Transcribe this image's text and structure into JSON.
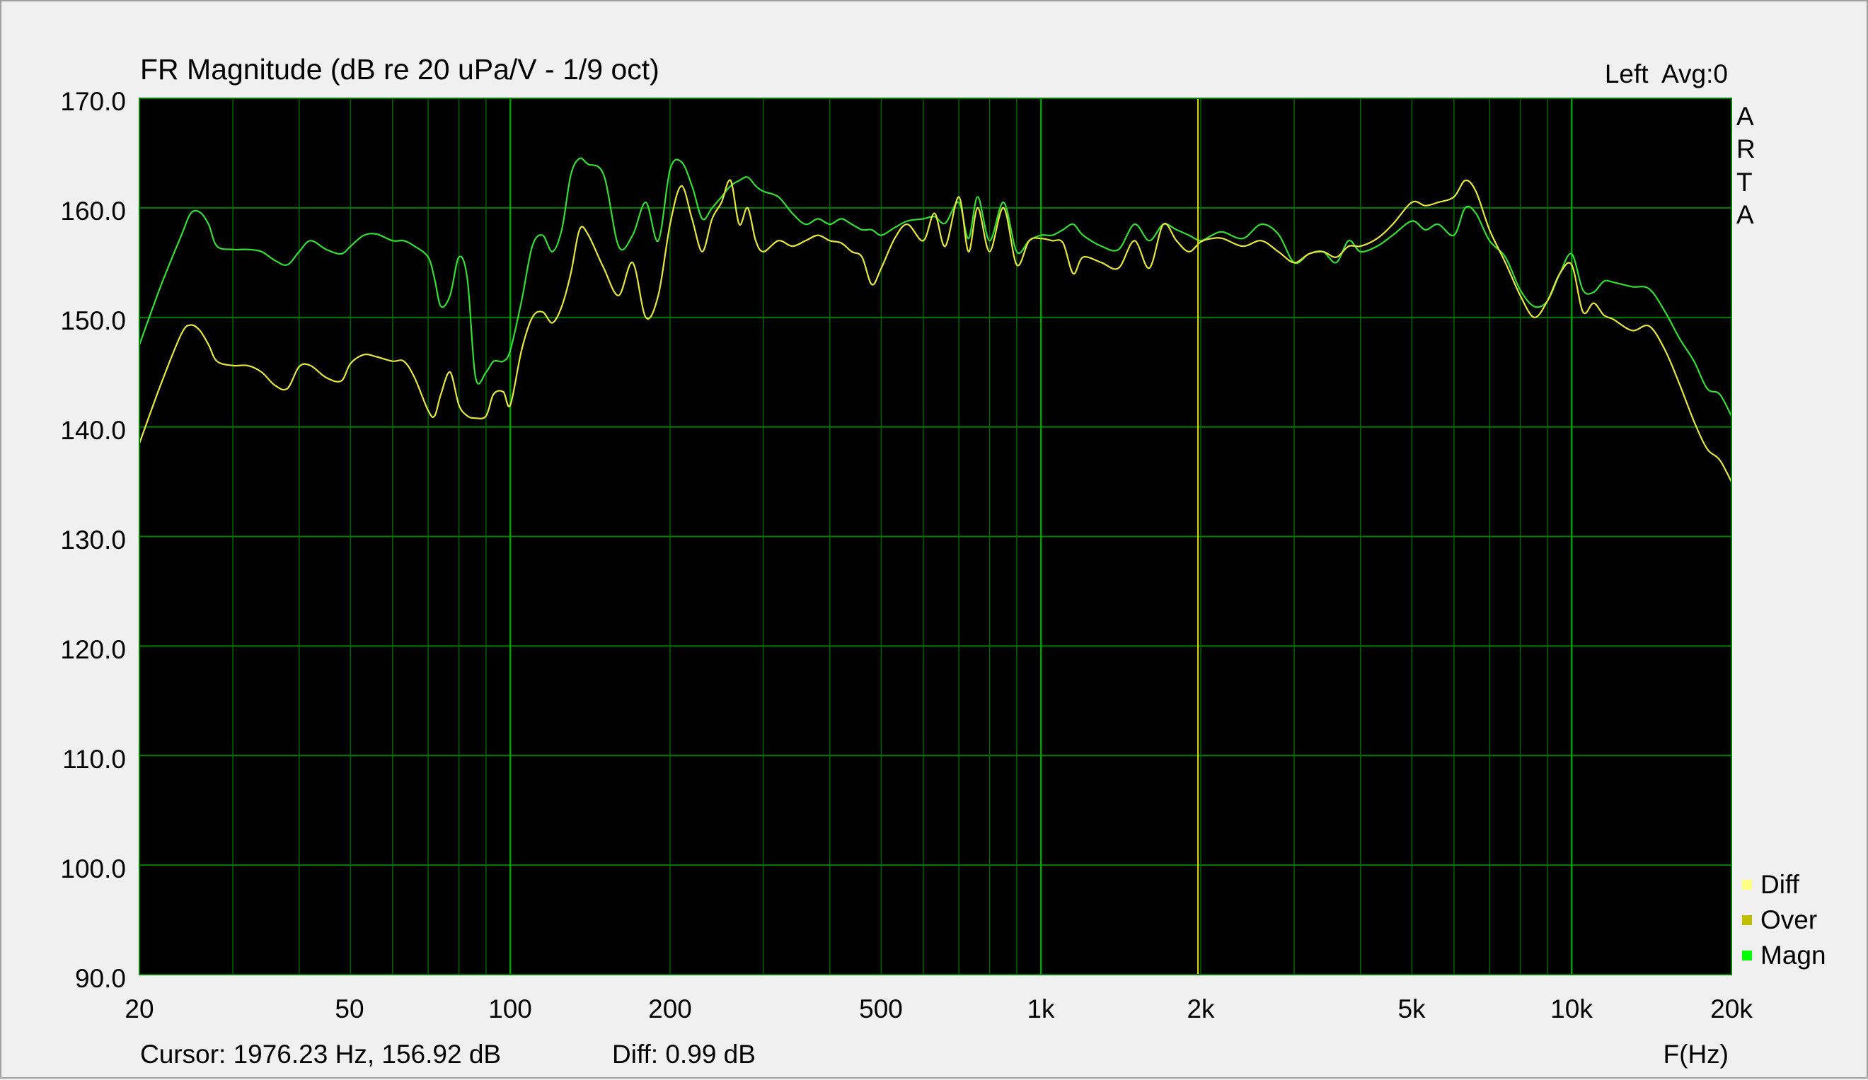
{
  "chart_data": {
    "type": "line",
    "title": "FR Magnitude (dB re 20 uPa/V - 1/9 oct)",
    "channel": "Left  Avg:0",
    "brand_letters": [
      "A",
      "R",
      "T",
      "A"
    ],
    "xlabel": "F(Hz)",
    "ylabel": "",
    "x_scale": "log",
    "xlim": [
      20,
      20000
    ],
    "ylim": [
      90,
      170
    ],
    "x_ticks": [
      {
        "value": 20,
        "label": "20"
      },
      {
        "value": 50,
        "label": "50"
      },
      {
        "value": 100,
        "label": "100"
      },
      {
        "value": 200,
        "label": "200"
      },
      {
        "value": 500,
        "label": "500"
      },
      {
        "value": 1000,
        "label": "1k"
      },
      {
        "value": 2000,
        "label": "2k"
      },
      {
        "value": 5000,
        "label": "5k"
      },
      {
        "value": 10000,
        "label": "10k"
      },
      {
        "value": 20000,
        "label": "20k"
      }
    ],
    "y_ticks": [
      "170.0",
      "160.0",
      "150.0",
      "140.0",
      "130.0",
      "120.0",
      "110.0",
      "100.0",
      "90.0"
    ],
    "grid": true,
    "background": "#000000",
    "grid_color": "#008000",
    "legend_position": "bottom-right",
    "legend": [
      {
        "name": "Diff",
        "color": "#ffff80"
      },
      {
        "name": "Over",
        "color": "#c0c000"
      },
      {
        "name": "Magn",
        "color": "#00ff00"
      }
    ],
    "cursor": {
      "frequency_hz": 1976.23,
      "level_db": 156.92,
      "color": "#e0e000"
    },
    "cursor_text": "Cursor: 1976.23 Hz, 156.92 dB",
    "diff_text": "Diff: 0.99 dB",
    "series": [
      {
        "name": "Magn",
        "color": "#33dd33",
        "x": [
          20,
          22,
          24,
          25,
          26,
          27,
          28,
          30,
          32,
          34,
          36,
          38,
          40,
          42,
          45,
          48,
          50,
          53,
          56,
          60,
          63,
          66,
          70,
          72,
          74,
          77,
          80,
          83,
          86,
          90,
          93,
          97,
          100,
          105,
          110,
          115,
          120,
          125,
          130,
          135,
          140,
          150,
          160,
          170,
          180,
          190,
          200,
          210,
          220,
          230,
          240,
          250,
          260,
          270,
          280,
          290,
          300,
          320,
          340,
          360,
          380,
          400,
          420,
          440,
          460,
          480,
          500,
          530,
          560,
          600,
          630,
          660,
          700,
          730,
          760,
          800,
          850,
          900,
          950,
          1000,
          1050,
          1100,
          1150,
          1200,
          1300,
          1400,
          1500,
          1600,
          1700,
          1800,
          1900,
          2000,
          2100,
          2200,
          2400,
          2600,
          2800,
          3000,
          3200,
          3400,
          3600,
          3800,
          4000,
          4300,
          4600,
          5000,
          5300,
          5600,
          6000,
          6300,
          6600,
          7000,
          7500,
          8000,
          8500,
          9000,
          9500,
          10000,
          10500,
          11000,
          11500,
          12000,
          13000,
          14000,
          15000,
          16000,
          17000,
          18000,
          19000,
          20000
        ],
        "values": [
          147.5,
          153.0,
          157.5,
          159.5,
          159.6,
          158.5,
          156.5,
          156.2,
          156.2,
          156.0,
          155.2,
          154.8,
          156.0,
          157.0,
          156.2,
          155.8,
          156.5,
          157.5,
          157.6,
          157.0,
          157.0,
          156.5,
          155.5,
          153.5,
          151.0,
          152.0,
          155.5,
          153.5,
          144.5,
          145.0,
          146.0,
          146.0,
          147.0,
          151.5,
          156.5,
          157.5,
          156.0,
          158.0,
          163.0,
          164.5,
          164.0,
          163.0,
          156.5,
          157.5,
          160.5,
          157.0,
          163.5,
          164.2,
          162.0,
          159.0,
          160.0,
          161.0,
          162.0,
          162.5,
          162.8,
          162.0,
          161.5,
          161.0,
          159.5,
          158.5,
          159.0,
          158.5,
          159.0,
          158.5,
          158.0,
          158.0,
          157.5,
          158.2,
          158.8,
          159.0,
          159.2,
          158.6,
          160.5,
          157.2,
          161.0,
          157.0,
          160.5,
          156.0,
          157.0,
          157.5,
          157.5,
          158.0,
          158.5,
          157.5,
          156.5,
          156.2,
          158.5,
          157.0,
          158.5,
          158.0,
          157.5,
          157.0,
          157.5,
          157.8,
          157.2,
          158.5,
          157.6,
          155.0,
          155.8,
          156.0,
          155.0,
          157.0,
          156.0,
          156.5,
          157.5,
          158.8,
          158.0,
          158.5,
          157.5,
          160.0,
          159.5,
          157.0,
          155.5,
          152.5,
          151.0,
          151.5,
          154.0,
          155.8,
          152.5,
          152.3,
          153.3,
          153.2,
          152.8,
          152.6,
          150.5,
          148.0,
          146.0,
          143.5,
          143.0,
          141.0
        ]
      },
      {
        "name": "Over",
        "color": "#e6e63c",
        "x": [
          20,
          22,
          24,
          25,
          26,
          27,
          28,
          30,
          32,
          34,
          36,
          38,
          40,
          42,
          45,
          48,
          50,
          53,
          56,
          60,
          63,
          66,
          70,
          72,
          74,
          77,
          80,
          83,
          86,
          90,
          93,
          97,
          100,
          105,
          110,
          115,
          120,
          125,
          130,
          135,
          140,
          150,
          160,
          170,
          180,
          190,
          200,
          210,
          220,
          230,
          240,
          250,
          260,
          270,
          280,
          290,
          300,
          320,
          340,
          360,
          380,
          400,
          420,
          440,
          460,
          480,
          500,
          530,
          560,
          600,
          630,
          660,
          700,
          730,
          760,
          800,
          850,
          900,
          950,
          1000,
          1050,
          1100,
          1150,
          1200,
          1300,
          1400,
          1500,
          1600,
          1700,
          1800,
          1900,
          2000,
          2100,
          2200,
          2400,
          2600,
          2800,
          3000,
          3200,
          3400,
          3600,
          3800,
          4000,
          4300,
          4600,
          5000,
          5300,
          5600,
          6000,
          6300,
          6600,
          7000,
          7500,
          8000,
          8500,
          9000,
          9500,
          10000,
          10500,
          11000,
          11500,
          12000,
          13000,
          14000,
          15000,
          16000,
          17000,
          18000,
          19000,
          20000
        ],
        "values": [
          138.5,
          144.0,
          148.5,
          149.3,
          148.8,
          147.5,
          146.0,
          145.6,
          145.6,
          145.0,
          143.8,
          143.5,
          145.5,
          145.6,
          144.5,
          144.2,
          145.8,
          146.6,
          146.4,
          146.0,
          146.0,
          144.5,
          141.5,
          141.0,
          143.0,
          145.0,
          142.0,
          141.0,
          140.8,
          141.0,
          143.0,
          143.2,
          142.0,
          147.0,
          150.0,
          150.5,
          149.5,
          151.0,
          154.0,
          158.0,
          157.6,
          154.5,
          152.0,
          155.0,
          150.0,
          152.0,
          158.5,
          162.0,
          159.0,
          156.0,
          159.0,
          160.5,
          162.5,
          158.5,
          160.0,
          157.0,
          156.0,
          157.0,
          156.5,
          157.0,
          157.5,
          157.0,
          156.8,
          156.0,
          155.5,
          153.0,
          154.5,
          157.2,
          158.5,
          157.0,
          159.5,
          156.5,
          161.0,
          156.0,
          160.0,
          156.0,
          160.0,
          154.8,
          157.0,
          157.2,
          157.0,
          156.8,
          154.0,
          155.5,
          155.0,
          154.5,
          157.0,
          154.5,
          158.5,
          157.0,
          156.0,
          156.9,
          157.2,
          157.2,
          156.5,
          157.0,
          156.0,
          155.0,
          155.8,
          156.0,
          155.5,
          156.5,
          156.5,
          157.2,
          158.5,
          160.5,
          160.2,
          160.5,
          161.0,
          162.5,
          161.5,
          158.0,
          155.0,
          152.0,
          150.0,
          151.5,
          154.0,
          154.8,
          150.5,
          151.3,
          150.2,
          149.8,
          148.8,
          149.2,
          147.0,
          143.8,
          140.5,
          138.0,
          137.0,
          135.0
        ]
      }
    ]
  }
}
